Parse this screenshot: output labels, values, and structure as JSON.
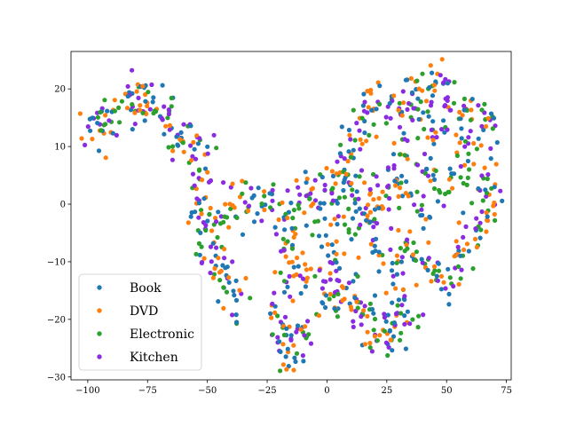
{
  "chart_data": {
    "type": "scatter",
    "title": "",
    "xlabel": "",
    "ylabel": "",
    "xlim": [
      -107,
      77
    ],
    "ylim": [
      -30.5,
      26.5
    ],
    "xticks": [
      -100,
      -75,
      -50,
      -25,
      0,
      25,
      50,
      75
    ],
    "yticks": [
      -30,
      -20,
      -10,
      0,
      10,
      20
    ],
    "grid": false,
    "legend_position": "lower-left",
    "marker": "circle",
    "series": [
      {
        "name": "Book",
        "color": "#1f77b4"
      },
      {
        "name": "DVD",
        "color": "#ff7f0e"
      },
      {
        "name": "Electronic",
        "color": "#2ca02c"
      },
      {
        "name": "Kitchen",
        "color": "#8a2be2"
      }
    ],
    "anchors": [
      [
        -98,
        12
      ],
      [
        -94,
        14
      ],
      [
        -90,
        16
      ],
      [
        -85,
        17
      ],
      [
        -80,
        18
      ],
      [
        -76,
        18
      ],
      [
        -72,
        17
      ],
      [
        -68,
        15
      ],
      [
        -64,
        12
      ],
      [
        -60,
        11
      ],
      [
        -55,
        10
      ],
      [
        -52,
        6
      ],
      [
        -51,
        2
      ],
      [
        -54,
        -2
      ],
      [
        -52,
        -6
      ],
      [
        -48,
        -8
      ],
      [
        -45,
        -11
      ],
      [
        -41,
        -13
      ],
      [
        -38,
        -16
      ],
      [
        -42,
        -2
      ],
      [
        -36,
        1
      ],
      [
        -30,
        0
      ],
      [
        -24,
        0
      ],
      [
        -18,
        -1
      ],
      [
        -16,
        -6
      ],
      [
        -15,
        -11
      ],
      [
        -18,
        -17
      ],
      [
        -19,
        -21
      ],
      [
        -18,
        -25
      ],
      [
        -13,
        -26
      ],
      [
        -10,
        -22
      ],
      [
        -10,
        -12
      ],
      [
        -8,
        -5
      ],
      [
        -9,
        2
      ],
      [
        -5,
        3
      ],
      [
        -1,
        1
      ],
      [
        3,
        3
      ],
      [
        8,
        5
      ],
      [
        5,
        -5
      ],
      [
        2,
        -10
      ],
      [
        0,
        -15
      ],
      [
        3,
        -18
      ],
      [
        8,
        -15
      ],
      [
        12,
        -17
      ],
      [
        15,
        -20
      ],
      [
        19,
        -22
      ],
      [
        25,
        -21
      ],
      [
        29,
        -23
      ],
      [
        33,
        -20
      ],
      [
        30,
        -16
      ],
      [
        28,
        -10
      ],
      [
        32,
        -7
      ],
      [
        38,
        -10
      ],
      [
        45,
        -11
      ],
      [
        50,
        -13
      ],
      [
        55,
        -8
      ],
      [
        60,
        -6
      ],
      [
        65,
        -3
      ],
      [
        68,
        0
      ],
      [
        20,
        -6
      ],
      [
        15,
        -2
      ],
      [
        12,
        0
      ],
      [
        18,
        2
      ],
      [
        24,
        1
      ],
      [
        28,
        5
      ],
      [
        30,
        8
      ],
      [
        10,
        8
      ],
      [
        12,
        12
      ],
      [
        16,
        15
      ],
      [
        20,
        18
      ],
      [
        26,
        16
      ],
      [
        33,
        17
      ],
      [
        37,
        20
      ],
      [
        42,
        21
      ],
      [
        47,
        20
      ],
      [
        52,
        17
      ],
      [
        58,
        15
      ],
      [
        64,
        15
      ],
      [
        69,
        13
      ],
      [
        60,
        10
      ],
      [
        55,
        5
      ],
      [
        48,
        2
      ],
      [
        42,
        8
      ],
      [
        46,
        13
      ],
      [
        38,
        14
      ],
      [
        35,
        2
      ],
      [
        40,
        -3
      ],
      [
        66,
        4
      ]
    ],
    "spread": [
      3,
      2
    ],
    "points_per_anchor": 12,
    "random_seed": 7
  }
}
